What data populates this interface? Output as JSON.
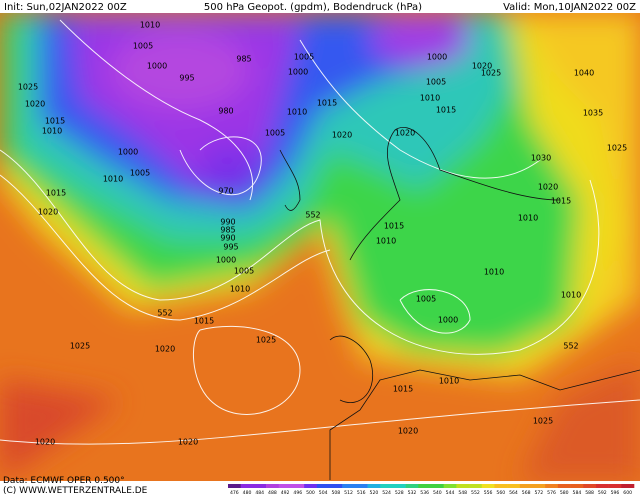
{
  "header": {
    "init": "Init: Sun,02JAN2022 00Z",
    "title": "500 hPa Geopot. (gpdm), Bodendruck (hPa)",
    "valid": "Valid: Mon,10JAN2022 00Z"
  },
  "isobar_labels": [
    1010,
    1005,
    1000,
    995,
    985,
    980,
    970,
    990,
    985,
    990,
    995,
    1000,
    1005,
    1010,
    1015,
    1025,
    1020,
    1015,
    1010,
    1000,
    1005,
    1010,
    1015,
    1020,
    1025,
    1020,
    1025,
    1020,
    1020,
    1015,
    1010,
    1020,
    1025,
    1010,
    1005,
    1000,
    1010,
    1010,
    1015,
    1010,
    1015,
    1020,
    1030,
    1025,
    1035,
    1040,
    1020,
    1025,
    1010,
    1015,
    1005,
    1000,
    1020,
    1020,
    1015,
    1010,
    1005,
    1000,
    1005,
    552,
    552,
    552
  ],
  "colorbar": {
    "labels": [
      476,
      480,
      484,
      488,
      492,
      496,
      500,
      504,
      508,
      512,
      516,
      520,
      524,
      528,
      532,
      536,
      540,
      544,
      548,
      552,
      556,
      560,
      564,
      568,
      572,
      576,
      580,
      584,
      588,
      592,
      596,
      600
    ]
  },
  "footer": {
    "source": "Data: ECMWF OPER 0.500°",
    "copyright": "(C) WWW.WETTERZENTRALE.DE"
  }
}
